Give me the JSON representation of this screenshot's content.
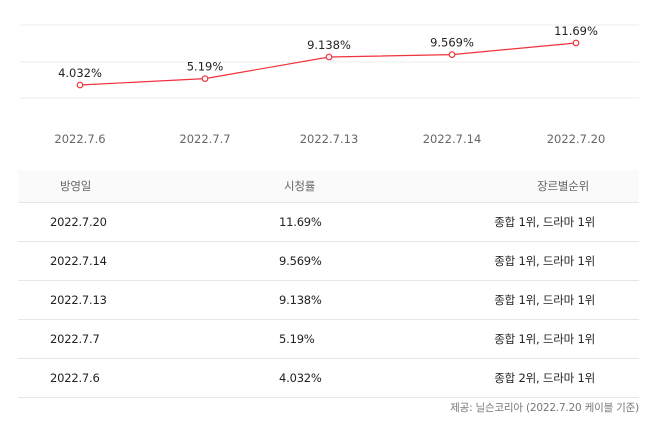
{
  "chart_data": {
    "type": "line",
    "categories": [
      "2022.7.6",
      "2022.7.7",
      "2022.7.13",
      "2022.7.14",
      "2022.7.20"
    ],
    "values": [
      4.032,
      5.19,
      9.138,
      9.569,
      11.69
    ],
    "data_labels": [
      "4.032%",
      "5.19%",
      "9.138%",
      "9.569%",
      "11.69%"
    ],
    "title": "",
    "xlabel": "",
    "ylabel": "",
    "grid": true,
    "legend": "none",
    "color": "#f0323c"
  },
  "table": {
    "headers": {
      "date": "방영일",
      "rating": "시청률",
      "genre_rank": "장르별순위"
    },
    "rows": [
      {
        "date": "2022.7.20",
        "rating": "11.69%",
        "genre_rank": "종합 1위, 드라마 1위"
      },
      {
        "date": "2022.7.14",
        "rating": "9.569%",
        "genre_rank": "종합 1위, 드라마 1위"
      },
      {
        "date": "2022.7.13",
        "rating": "9.138%",
        "genre_rank": "종합 1위, 드라마 1위"
      },
      {
        "date": "2022.7.7",
        "rating": "5.19%",
        "genre_rank": "종합 1위, 드라마 1위"
      },
      {
        "date": "2022.7.6",
        "rating": "4.032%",
        "genre_rank": "종합 2위, 드라마 1위"
      }
    ]
  },
  "source": "제공: 닐슨코리아 (2022.7.20 케이블 기준)"
}
